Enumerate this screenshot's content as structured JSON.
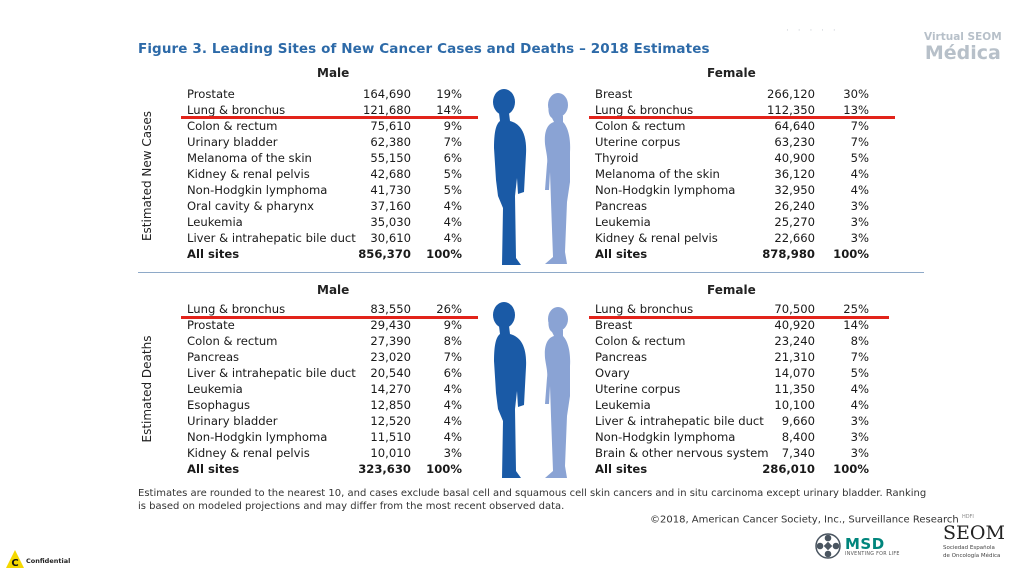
{
  "figure_title": "Figure 3. Leading Sites of New Cancer Cases and Deaths – 2018 Estimates",
  "brand": {
    "line1": "Virtual SEOM",
    "line2": "Médica"
  },
  "sections": {
    "new_cases": {
      "label": "Estimated New Cases",
      "male": {
        "heading": "Male",
        "rows": [
          {
            "site": "Prostate",
            "count": "164,690",
            "pct": "19%"
          },
          {
            "site": "Lung & bronchus",
            "count": "121,680",
            "pct": "14%"
          },
          {
            "site": "Colon & rectum",
            "count": "75,610",
            "pct": "9%"
          },
          {
            "site": "Urinary bladder",
            "count": "62,380",
            "pct": "7%"
          },
          {
            "site": "Melanoma of the skin",
            "count": "55,150",
            "pct": "6%"
          },
          {
            "site": "Kidney & renal pelvis",
            "count": "42,680",
            "pct": "5%"
          },
          {
            "site": "Non-Hodgkin lymphoma",
            "count": "41,730",
            "pct": "5%"
          },
          {
            "site": "Oral cavity & pharynx",
            "count": "37,160",
            "pct": "4%"
          },
          {
            "site": "Leukemia",
            "count": "35,030",
            "pct": "4%"
          },
          {
            "site": "Liver & intrahepatic bile duct",
            "count": "30,610",
            "pct": "4%"
          },
          {
            "site": "All sites",
            "count": "856,370",
            "pct": "100%"
          }
        ]
      },
      "female": {
        "heading": "Female",
        "rows": [
          {
            "site": "Breast",
            "count": "266,120",
            "pct": "30%"
          },
          {
            "site": "Lung & bronchus",
            "count": "112,350",
            "pct": "13%"
          },
          {
            "site": "Colon & rectum",
            "count": "64,640",
            "pct": "7%"
          },
          {
            "site": "Uterine corpus",
            "count": "63,230",
            "pct": "7%"
          },
          {
            "site": "Thyroid",
            "count": "40,900",
            "pct": "5%"
          },
          {
            "site": "Melanoma of the skin",
            "count": "36,120",
            "pct": "4%"
          },
          {
            "site": "Non-Hodgkin lymphoma",
            "count": "32,950",
            "pct": "4%"
          },
          {
            "site": "Pancreas",
            "count": "26,240",
            "pct": "3%"
          },
          {
            "site": "Leukemia",
            "count": "25,270",
            "pct": "3%"
          },
          {
            "site": "Kidney & renal pelvis",
            "count": "22,660",
            "pct": "3%"
          },
          {
            "site": "All sites",
            "count": "878,980",
            "pct": "100%"
          }
        ]
      }
    },
    "deaths": {
      "label": "Estimated Deaths",
      "male": {
        "heading": "Male",
        "rows": [
          {
            "site": "Lung & bronchus",
            "count": "83,550",
            "pct": "26%"
          },
          {
            "site": "Prostate",
            "count": "29,430",
            "pct": "9%"
          },
          {
            "site": "Colon & rectum",
            "count": "27,390",
            "pct": "8%"
          },
          {
            "site": "Pancreas",
            "count": "23,020",
            "pct": "7%"
          },
          {
            "site": "Liver & intrahepatic bile duct",
            "count": "20,540",
            "pct": "6%"
          },
          {
            "site": "Leukemia",
            "count": "14,270",
            "pct": "4%"
          },
          {
            "site": "Esophagus",
            "count": "12,850",
            "pct": "4%"
          },
          {
            "site": "Urinary bladder",
            "count": "12,520",
            "pct": "4%"
          },
          {
            "site": "Non-Hodgkin lymphoma",
            "count": "11,510",
            "pct": "4%"
          },
          {
            "site": "Kidney & renal pelvis",
            "count": "10,010",
            "pct": "3%"
          },
          {
            "site": "All sites",
            "count": "323,630",
            "pct": "100%"
          }
        ]
      },
      "female": {
        "heading": "Female",
        "rows": [
          {
            "site": "Lung & bronchus",
            "count": "70,500",
            "pct": "25%"
          },
          {
            "site": "Breast",
            "count": "40,920",
            "pct": "14%"
          },
          {
            "site": "Colon & rectum",
            "count": "23,240",
            "pct": "8%"
          },
          {
            "site": "Pancreas",
            "count": "21,310",
            "pct": "7%"
          },
          {
            "site": "Ovary",
            "count": "14,070",
            "pct": "5%"
          },
          {
            "site": "Uterine corpus",
            "count": "11,350",
            "pct": "4%"
          },
          {
            "site": "Leukemia",
            "count": "10,100",
            "pct": "4%"
          },
          {
            "site": "Liver & intrahepatic bile duct",
            "count": "9,660",
            "pct": "3%"
          },
          {
            "site": "Non-Hodgkin lymphoma",
            "count": "8,400",
            "pct": "3%"
          },
          {
            "site": "Brain & other nervous system",
            "count": "7,340",
            "pct": "3%"
          },
          {
            "site": "All sites",
            "count": "286,010",
            "pct": "100%"
          }
        ]
      }
    }
  },
  "footnote": "Estimates are rounded to the nearest 10, and cases exclude basal cell and squamous cell skin cancers and in situ carcinoma except urinary bladder. Ranking is based on modeled projections and may differ from the most recent observed data.",
  "copyright": "©2018, American Cancer Society, Inc., Surveillance Research",
  "copyright_mark": "HDFI",
  "msd": {
    "name": "MSD",
    "tagline": "INVENTING FOR LIFE"
  },
  "seom": {
    "name": "SEOM",
    "sub1": "Sociedad Española",
    "sub2": "de Oncología Médica"
  },
  "confidential": {
    "badge": "C",
    "label": "Confidential"
  },
  "colors": {
    "title": "#2d6aa8",
    "male_silhouette": "#1a5aa6",
    "female_silhouette": "#8aa3d4",
    "highlight": "#e2231a"
  }
}
